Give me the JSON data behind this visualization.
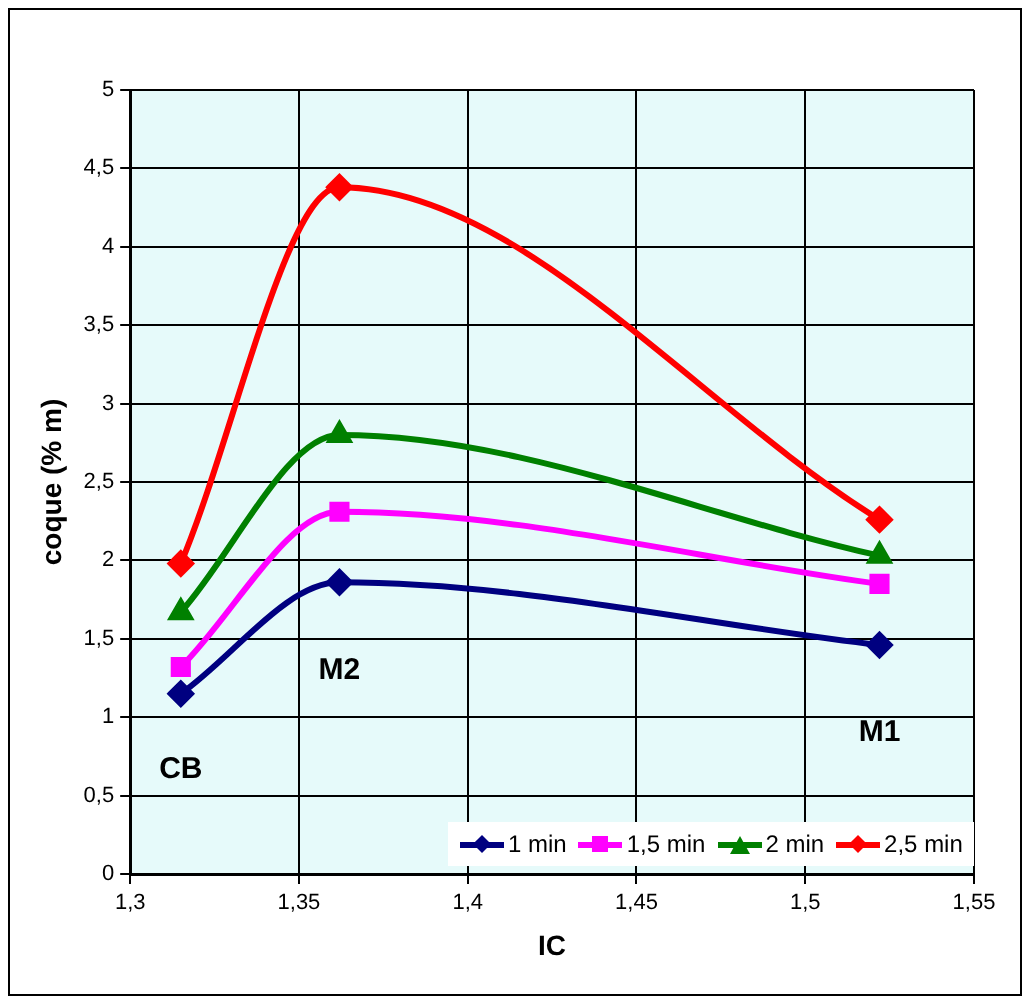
{
  "chart_data": {
    "type": "line",
    "xlabel": "IC",
    "ylabel": "coque (% m)",
    "x": [
      1.315,
      1.362,
      1.522
    ],
    "series": [
      {
        "name": "1 min",
        "color": "#000080",
        "marker": "diamond",
        "values": [
          1.15,
          1.86,
          1.46
        ]
      },
      {
        "name": "1,5 min",
        "color": "#ff00ff",
        "marker": "square",
        "values": [
          1.32,
          2.31,
          1.85
        ]
      },
      {
        "name": "2 min",
        "color": "#008000",
        "marker": "triangle",
        "values": [
          1.67,
          2.8,
          2.03
        ]
      },
      {
        "name": "2,5 min",
        "color": "#ff0000",
        "marker": "diamond",
        "values": [
          1.98,
          4.38,
          2.26
        ]
      }
    ],
    "xlim": [
      1.3,
      1.55
    ],
    "xticks": [
      {
        "value": 1.3,
        "label": "1,3"
      },
      {
        "value": 1.35,
        "label": "1,35"
      },
      {
        "value": 1.4,
        "label": "1,4"
      },
      {
        "value": 1.45,
        "label": "1,45"
      },
      {
        "value": 1.5,
        "label": "1,5"
      },
      {
        "value": 1.55,
        "label": "1,55"
      }
    ],
    "ylim": [
      0,
      5
    ],
    "yticks": [
      0,
      {
        "value": 0.5,
        "label": "0,5"
      },
      1,
      {
        "value": 1.5,
        "label": "1,5"
      },
      2,
      {
        "value": 2.5,
        "label": "2,5"
      },
      3,
      {
        "value": 3.5,
        "label": "3,5"
      },
      4,
      {
        "value": 4.5,
        "label": "4,5"
      },
      5
    ],
    "annotations": [
      "CB",
      "M2",
      "M1"
    ],
    "grid": true,
    "legend": "bottom right",
    "line_style": "solid"
  }
}
